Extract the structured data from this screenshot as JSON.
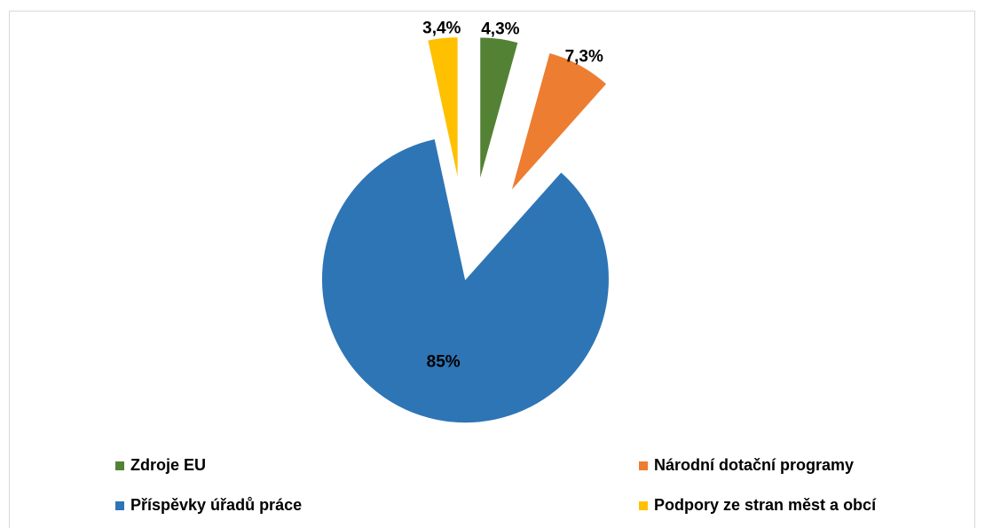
{
  "chart_data": {
    "type": "pie",
    "categories": [
      "Zdroje EU",
      "Národní dotační programy",
      "Příspěvky úřadů práce",
      "Podpory ze stran měst a obcí"
    ],
    "values": [
      4.3,
      7.3,
      85,
      3.4
    ],
    "value_labels": [
      "4,3%",
      "7,3%",
      "85%",
      "3,4%"
    ],
    "colors": [
      "#548235",
      "#ed7d31",
      "#2e75b6",
      "#ffc000"
    ],
    "legend": "bottom"
  }
}
